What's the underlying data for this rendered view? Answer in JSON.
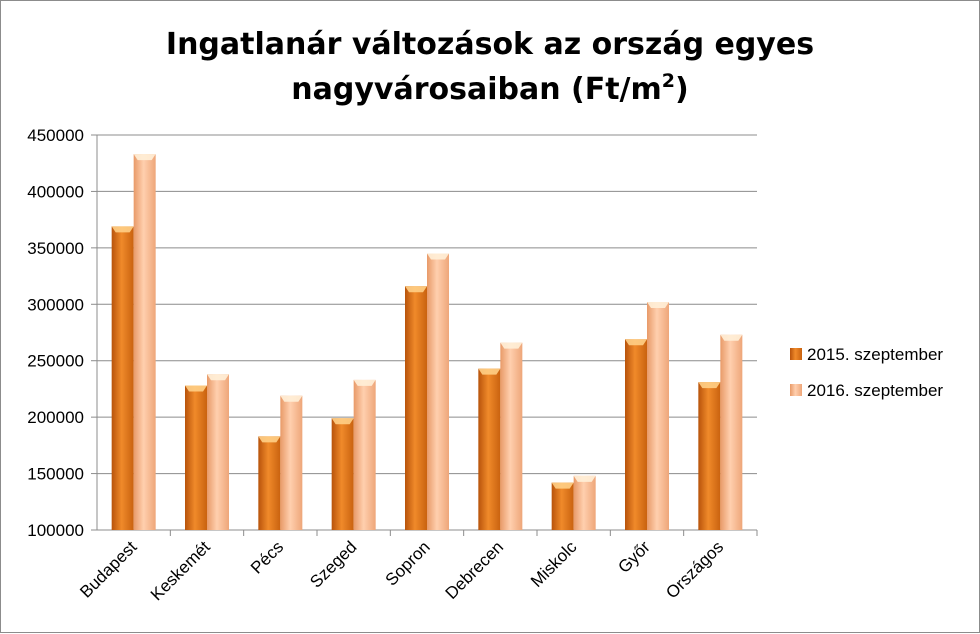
{
  "chart_data": {
    "type": "bar",
    "title_line1": "Ingatlanár változások az ország egyes",
    "title_line2": "nagyvárosaiban (Ft/m",
    "title_sup": "2",
    "title_end": ")",
    "categories": [
      "Budapest",
      "Keskemét",
      "Pécs",
      "Szeged",
      "Sopron",
      "Debrecen",
      "Miskolc",
      "Győr",
      "Országos"
    ],
    "series": [
      {
        "name": "2015. szeptember",
        "values": [
          369000,
          228000,
          183000,
          199000,
          316000,
          243000,
          142000,
          269000,
          231000
        ],
        "color": "#e07a1c"
      },
      {
        "name": "2016. szeptember",
        "values": [
          433000,
          238000,
          219000,
          233000,
          345000,
          266000,
          148000,
          302000,
          273000
        ],
        "color": "#f5b184"
      }
    ],
    "yticks": [
      "100000",
      "150000",
      "200000",
      "250000",
      "300000",
      "350000",
      "400000",
      "450000"
    ],
    "ylim": [
      100000,
      450000
    ],
    "grid": true,
    "legend_position": "right"
  }
}
